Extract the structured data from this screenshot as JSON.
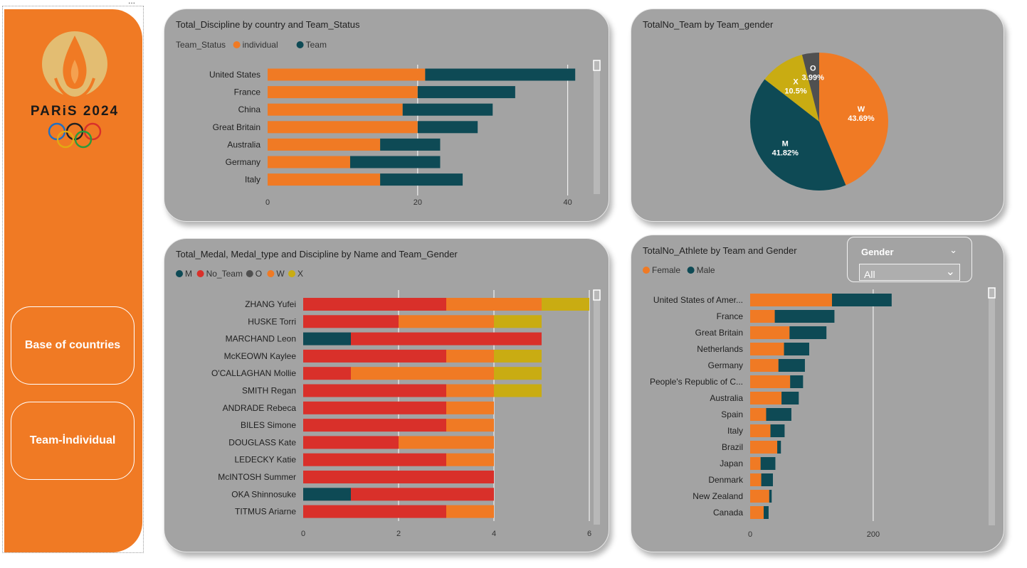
{
  "colors": {
    "orange": "#f07a24",
    "dark_teal": "#0e4a55",
    "red": "#d9302a",
    "dark_gray": "#505050",
    "mustard": "#c9ac12",
    "card_bg": "#a3a3a3"
  },
  "sidebar": {
    "logo_text": "PARiS 2024",
    "logo_icon": "paris-2024-flame-logo",
    "rings_icon": "olympic-rings-icon",
    "nav": [
      {
        "label": "Base of countries"
      },
      {
        "label": "Team-İndividual"
      }
    ]
  },
  "slicer": {
    "title": "Gender",
    "value": "All",
    "icon": "chevron-down-icon"
  },
  "chart_data": [
    {
      "id": "discipline",
      "type": "bar",
      "orientation": "horizontal",
      "stacked": true,
      "title": "Total_Discipline by country and Team_Status",
      "legend_title": "Team_Status",
      "categories": [
        "United States",
        "France",
        "China",
        "Great Britain",
        "Australia",
        "Germany",
        "Italy"
      ],
      "series": [
        {
          "name": "individual",
          "color": "#f07a24",
          "values": [
            21,
            20,
            18,
            20,
            15,
            11,
            15
          ]
        },
        {
          "name": "Team",
          "color": "#0e4a55",
          "values": [
            20,
            13,
            12,
            8,
            8,
            12,
            11
          ]
        }
      ],
      "xticks": [
        0,
        20,
        40
      ],
      "xlim": [
        0,
        48
      ],
      "grid": true
    },
    {
      "id": "pie",
      "type": "pie",
      "title": "TotalNo_Team by Team_gender",
      "slices": [
        {
          "name": "W",
          "value": 43.69,
          "label": "43.69%",
          "color": "#f07a24"
        },
        {
          "name": "M",
          "value": 41.82,
          "label": "41.82%",
          "color": "#0e4a55"
        },
        {
          "name": "X",
          "value": 10.5,
          "label": "10.5%",
          "color": "#c9ac12"
        },
        {
          "name": "O",
          "value": 3.99,
          "label": "3.99%",
          "color": "#505050"
        }
      ]
    },
    {
      "id": "medals",
      "type": "bar",
      "orientation": "horizontal",
      "stacked": true,
      "title": "Total_Medal, Medal_type and Discipline by Name and Team_Gender",
      "categories": [
        "ZHANG Yufei",
        "HUSKE Torri",
        "MARCHAND Leon",
        "McKEOWN Kaylee",
        "O'CALLAGHAN Mollie",
        "SMITH Regan",
        "ANDRADE Rebeca",
        "BILES Simone",
        "DOUGLASS Kate",
        "LEDECKY Katie",
        "McINTOSH Summer",
        "OKA Shinnosuke",
        "TITMUS Ariarne"
      ],
      "series": [
        {
          "name": "M",
          "color": "#0e4a55",
          "values": [
            0,
            0,
            1,
            0,
            0,
            0,
            0,
            0,
            0,
            0,
            0,
            1,
            0
          ]
        },
        {
          "name": "No_Team",
          "color": "#d9302a",
          "values": [
            3,
            2,
            4,
            3,
            1,
            3,
            3,
            3,
            2,
            3,
            4,
            3,
            3
          ]
        },
        {
          "name": "O",
          "color": "#505050",
          "values": [
            0,
            0,
            0,
            0,
            0,
            0,
            0,
            0,
            0,
            0,
            0,
            0,
            0
          ]
        },
        {
          "name": "W",
          "color": "#f07a24",
          "values": [
            2,
            2,
            0,
            1,
            3,
            1,
            1,
            1,
            2,
            1,
            0,
            0,
            1
          ]
        },
        {
          "name": "X",
          "color": "#c9ac12",
          "values": [
            1,
            1,
            0,
            1,
            1,
            1,
            0,
            0,
            0,
            0,
            0,
            0,
            0
          ]
        }
      ],
      "xticks": [
        0,
        2,
        4,
        6
      ],
      "xlim": [
        0,
        6
      ],
      "grid": true
    },
    {
      "id": "athletes",
      "type": "bar",
      "orientation": "horizontal",
      "stacked": true,
      "title": "TotalNo_Athlete by Team and Gender",
      "categories": [
        "United States of Amer...",
        "France",
        "Great Britain",
        "Netherlands",
        "Germany",
        "People's Republic of C...",
        "Australia",
        "Spain",
        "Italy",
        "Brazil",
        "Japan",
        "Denmark",
        "New Zealand",
        "Canada"
      ],
      "series": [
        {
          "name": "Female",
          "color": "#f07a24",
          "values": [
            133,
            40,
            64,
            55,
            46,
            65,
            51,
            26,
            33,
            44,
            17,
            18,
            31,
            22
          ]
        },
        {
          "name": "Male",
          "color": "#0e4a55",
          "values": [
            97,
            97,
            60,
            41,
            43,
            21,
            28,
            41,
            23,
            6,
            24,
            19,
            4,
            8
          ]
        }
      ],
      "xticks": [
        0,
        200
      ],
      "xlim": [
        0,
        310
      ],
      "grid": true
    }
  ]
}
